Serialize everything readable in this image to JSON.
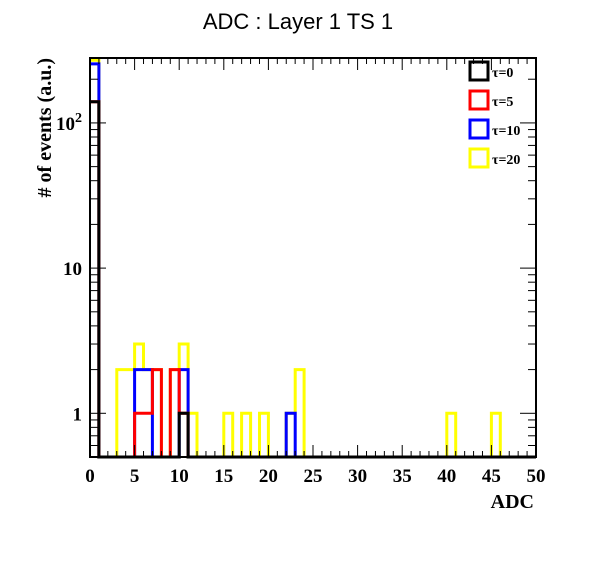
{
  "chart_data": {
    "type": "step-histogram",
    "title": "ADC : Layer 1 TS 1",
    "xlabel": "ADC",
    "ylabel": "# of events (a.u.)",
    "xlim": [
      0,
      50
    ],
    "ylim": [
      0.5,
      280
    ],
    "yscale": "log",
    "bin_width": 1,
    "x_ticks": [
      0,
      5,
      10,
      15,
      20,
      25,
      30,
      35,
      40,
      45,
      50
    ],
    "y_ticks": [
      {
        "value": 1,
        "label": "1"
      },
      {
        "value": 10,
        "label": "10"
      },
      {
        "value": 100,
        "label": "10",
        "exp": "2"
      }
    ],
    "legend_position": "top-right",
    "series": [
      {
        "name": "τ=0",
        "color": "#000000",
        "values": [
          140,
          0,
          0,
          0,
          0,
          0,
          0,
          0,
          0,
          0,
          1,
          0,
          0,
          0,
          0,
          0,
          0,
          0,
          0,
          0,
          0,
          0,
          0,
          0,
          0,
          0,
          0,
          0,
          0,
          0,
          0,
          0,
          0,
          0,
          0,
          0,
          0,
          0,
          0,
          0,
          0,
          0,
          0,
          0,
          0,
          0,
          0,
          0,
          0,
          0
        ]
      },
      {
        "name": "τ=5",
        "color": "#ff0000",
        "values": [
          140,
          0,
          0,
          0,
          0,
          1,
          1,
          2,
          0,
          2,
          1,
          0,
          0,
          0,
          0,
          0,
          0,
          0,
          0,
          0,
          0,
          0,
          0,
          0,
          0,
          0,
          0,
          0,
          0,
          0,
          0,
          0,
          0,
          0,
          0,
          0,
          0,
          0,
          0,
          0,
          0,
          0,
          0,
          0,
          0,
          0,
          0,
          0,
          0,
          0
        ]
      },
      {
        "name": "τ=10",
        "color": "#0000ff",
        "values": [
          255,
          0,
          0,
          0,
          0,
          2,
          2,
          0,
          0,
          0,
          2,
          0,
          0,
          0,
          0,
          0,
          0,
          0,
          0,
          0,
          0,
          0,
          1,
          0,
          0,
          0,
          0,
          0,
          0,
          0,
          0,
          0,
          0,
          0,
          0,
          0,
          0,
          0,
          0,
          0,
          0,
          0,
          0,
          0,
          0,
          0,
          0,
          0,
          0,
          0
        ]
      },
      {
        "name": "τ=20",
        "color": "#ffff00",
        "values": [
          270,
          0,
          0,
          2,
          2,
          3,
          2,
          2,
          0,
          2,
          3,
          1,
          0,
          0,
          0,
          1,
          0,
          1,
          0,
          1,
          0,
          0,
          1,
          2,
          0,
          0,
          0,
          0,
          0,
          0,
          0,
          0,
          0,
          0,
          0,
          0,
          0,
          0,
          0,
          0,
          1,
          0,
          0,
          0,
          0,
          1,
          0,
          0,
          0,
          0
        ]
      }
    ]
  }
}
